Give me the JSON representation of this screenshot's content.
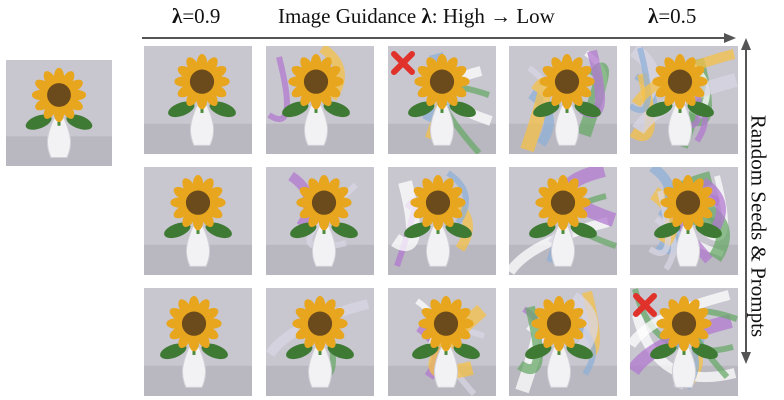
{
  "header": {
    "left_label": "λ=0.9",
    "center_label": "Image Guidance λ: High → Low",
    "right_label": "λ=0.5"
  },
  "side_label": "Random Seeds & Prompts",
  "icons": {
    "failure_marker": "red-x-icon",
    "arrow_horizontal": "arrow-right-icon",
    "arrow_vertical": "double-arrow-vertical-icon"
  },
  "colors": {
    "marker": "#e0312b",
    "arrow": "#555555",
    "petal": "#e5a51f",
    "vase": "#f2f1f4",
    "background": "#c9c7cf"
  },
  "grid": {
    "rows": 3,
    "cols": 5,
    "failed_cells": [
      [
        0,
        2
      ],
      [
        2,
        4
      ]
    ]
  }
}
